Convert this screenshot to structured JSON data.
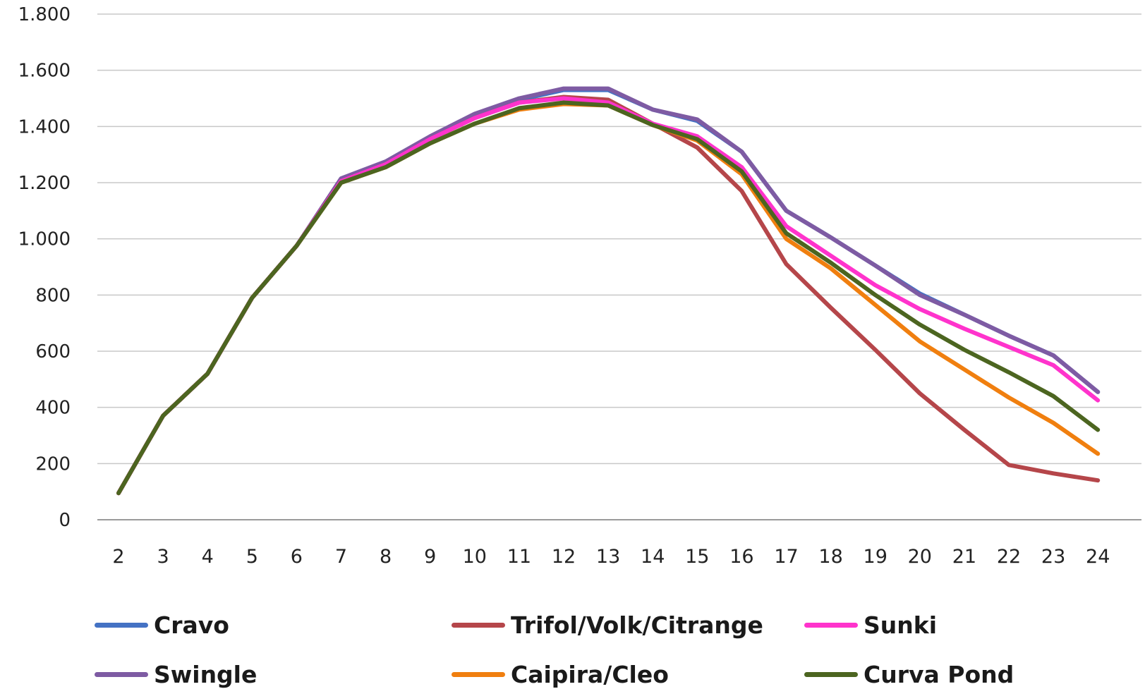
{
  "chart_data": {
    "type": "line",
    "title": "",
    "xlabel": "",
    "ylabel": "",
    "ylim": [
      0,
      1800
    ],
    "yticks": [
      {
        "value": 0,
        "label": "0"
      },
      {
        "value": 200,
        "label": "200"
      },
      {
        "value": 400,
        "label": "400"
      },
      {
        "value": 600,
        "label": "600"
      },
      {
        "value": 800,
        "label": "800"
      },
      {
        "value": 1000,
        "label": "1.000"
      },
      {
        "value": 1200,
        "label": "1.200"
      },
      {
        "value": 1400,
        "label": "1.400"
      },
      {
        "value": 1600,
        "label": "1.600"
      },
      {
        "value": 1800,
        "label": "1.800"
      }
    ],
    "x": [
      "2",
      "3",
      "4",
      "5",
      "6",
      "7",
      "8",
      "9",
      "10",
      "11",
      "12",
      "13",
      "14",
      "15",
      "16",
      "17",
      "18",
      "19",
      "20",
      "21",
      "22",
      "23",
      "24"
    ],
    "grid": true,
    "legend_position": "bottom",
    "series": [
      {
        "name": "Cravo",
        "color": "#4472C4",
        "values": [
          95,
          370,
          520,
          790,
          975,
          1210,
          1270,
          1360,
          1440,
          1495,
          1530,
          1530,
          1460,
          1420,
          1310,
          1100,
          1005,
          905,
          805,
          730,
          655,
          585,
          455
        ]
      },
      {
        "name": "Swingle",
        "color": "#7E5BA3",
        "values": [
          95,
          370,
          520,
          790,
          975,
          1215,
          1275,
          1365,
          1445,
          1500,
          1535,
          1535,
          1460,
          1425,
          1310,
          1100,
          1005,
          905,
          800,
          730,
          655,
          585,
          455
        ]
      },
      {
        "name": "Trifol/Volk/Citrange",
        "color": "#B5464A",
        "values": [
          95,
          370,
          520,
          790,
          975,
          1205,
          1265,
          1355,
          1430,
          1485,
          1505,
          1495,
          1410,
          1325,
          1170,
          910,
          755,
          605,
          450,
          320,
          195,
          165,
          140
        ]
      },
      {
        "name": "Caipira/Cleo",
        "color": "#F07F0F",
        "values": [
          95,
          370,
          520,
          790,
          975,
          1200,
          1255,
          1340,
          1410,
          1460,
          1480,
          1475,
          1405,
          1350,
          1230,
          1000,
          895,
          765,
          635,
          535,
          435,
          345,
          235
        ]
      },
      {
        "name": "Sunki",
        "color": "#FF33CC",
        "values": [
          95,
          370,
          520,
          790,
          975,
          1205,
          1265,
          1355,
          1430,
          1485,
          1500,
          1485,
          1410,
          1365,
          1255,
          1045,
          940,
          835,
          750,
          680,
          615,
          550,
          425
        ]
      },
      {
        "name": "Curva Pond",
        "color": "#4C6520",
        "values": [
          95,
          370,
          520,
          790,
          975,
          1200,
          1255,
          1340,
          1410,
          1465,
          1485,
          1475,
          1405,
          1355,
          1240,
          1020,
          915,
          800,
          695,
          605,
          525,
          440,
          320
        ]
      }
    ]
  },
  "legend": [
    {
      "label": "Cravo",
      "color": "#4472C4"
    },
    {
      "label": "Trifol/Volk/Citrange",
      "color": "#B5464A"
    },
    {
      "label": "Sunki",
      "color": "#FF33CC"
    },
    {
      "label": "Swingle",
      "color": "#7E5BA3"
    },
    {
      "label": "Caipira/Cleo",
      "color": "#F07F0F"
    },
    {
      "label": "Curva Pond",
      "color": "#4C6520"
    }
  ]
}
